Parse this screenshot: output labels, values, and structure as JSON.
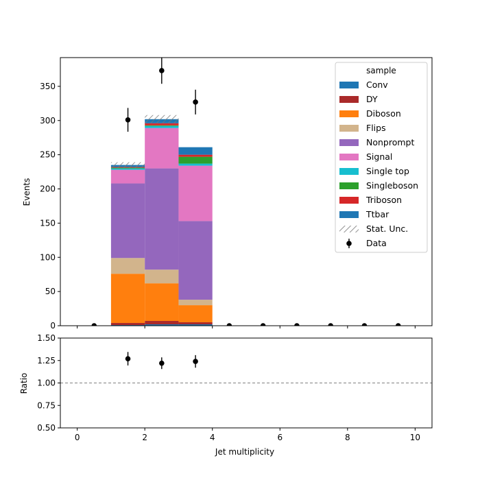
{
  "chart_data": [
    {
      "type": "bar",
      "stacked": true,
      "xlabel": "",
      "ylabel": "Events",
      "xlim": [
        -0.5,
        10.5
      ],
      "ylim": [
        0,
        392
      ],
      "xticks": [
        0,
        2,
        4,
        6,
        8,
        10
      ],
      "yticks": [
        0,
        50,
        100,
        150,
        200,
        250,
        300,
        350
      ],
      "ytick_labels": [
        "0",
        "50",
        "100",
        "150",
        "200",
        "250",
        "300",
        "350"
      ],
      "bins": [
        [
          1,
          2
        ],
        [
          2,
          3
        ],
        [
          3,
          4
        ]
      ],
      "series": [
        {
          "name": "Conv",
          "color": "#1f77b4",
          "values": [
            1,
            2,
            2
          ]
        },
        {
          "name": "DY",
          "color": "#aa2a2a",
          "values": [
            3,
            5,
            3
          ]
        },
        {
          "name": "Diboson",
          "color": "#ff7f0e",
          "values": [
            72,
            55,
            25
          ]
        },
        {
          "name": "Flips",
          "color": "#d2b48c",
          "values": [
            23,
            20,
            8
          ]
        },
        {
          "name": "Nonprompt",
          "color": "#9467bd",
          "values": [
            109,
            148,
            115
          ]
        },
        {
          "name": "Signal",
          "color": "#e377c2",
          "values": [
            20,
            59,
            81
          ]
        },
        {
          "name": "Single top",
          "color": "#17becf",
          "values": [
            2,
            3,
            3
          ]
        },
        {
          "name": "Singleboson",
          "color": "#2ca02c",
          "values": [
            1,
            1,
            10
          ]
        },
        {
          "name": "Triboson",
          "color": "#d62728",
          "values": [
            1,
            3,
            3
          ]
        },
        {
          "name": "Ttbar",
          "color": "#1f77b4",
          "values": [
            3,
            6,
            11
          ]
        }
      ],
      "stat_unc": {
        "name": "Stat. Unc.",
        "values": [
          4,
          6,
          0
        ]
      },
      "data": {
        "name": "Data",
        "x": [
          0.5,
          1.5,
          2.5,
          3.5,
          4.5,
          5.5,
          6.5,
          7.5,
          8.5,
          9.5
        ],
        "y": [
          0,
          301,
          373,
          327,
          0,
          0,
          0,
          0,
          0,
          0
        ],
        "err": [
          0,
          17.4,
          19.3,
          18.1,
          0,
          0,
          0,
          0,
          0,
          0
        ]
      },
      "legend": {
        "title": "sample",
        "position": "top-right"
      }
    },
    {
      "type": "scatter",
      "xlabel": "Jet multiplicity",
      "ylabel": "Ratio",
      "xlim": [
        -0.5,
        10.5
      ],
      "ylim": [
        0.5,
        1.5
      ],
      "xticks": [
        0,
        2,
        4,
        6,
        8,
        10
      ],
      "xtick_labels": [
        "0",
        "2",
        "4",
        "6",
        "8",
        "10"
      ],
      "yticks": [
        0.5,
        0.75,
        1.0,
        1.25,
        1.5
      ],
      "ytick_labels": [
        "0.50",
        "0.75",
        "1.00",
        "1.25",
        "1.50"
      ],
      "reference_line": 1.0,
      "points": {
        "x": [
          1.5,
          2.5,
          3.5
        ],
        "y": [
          1.27,
          1.22,
          1.24
        ],
        "err": [
          0.075,
          0.065,
          0.07
        ]
      }
    }
  ]
}
